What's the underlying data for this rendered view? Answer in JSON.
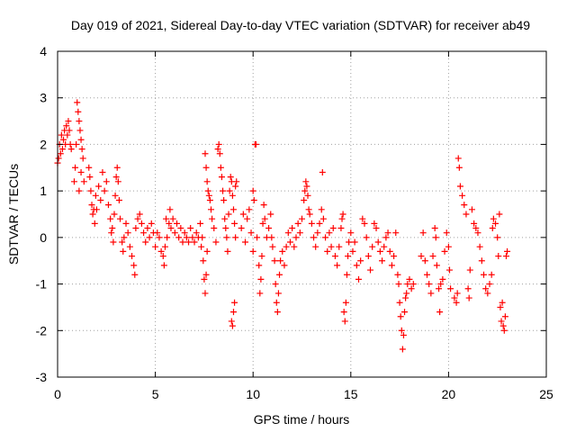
{
  "chart_data": {
    "type": "scatter",
    "title": "Day 019 of 2021, Sidereal Day-to-day VTEC variation (SDTVAR) for receiver ab49",
    "xlabel": "GPS time / hours",
    "ylabel": "SDTVAR / TECUs",
    "xlim": [
      0,
      25
    ],
    "ylim": [
      -3,
      4
    ],
    "xticks": [
      "0",
      "5",
      "10",
      "15",
      "20",
      "25"
    ],
    "yticks": [
      "-3",
      "-2",
      "-1",
      "0",
      "1",
      "2",
      "3",
      "4"
    ],
    "grid": true,
    "marker": "plus",
    "color": "#ff0000",
    "series": [
      {
        "name": "SDTVAR",
        "points": [
          [
            0.0,
            1.6
          ],
          [
            0.05,
            1.7
          ],
          [
            0.1,
            2.0
          ],
          [
            0.15,
            1.8
          ],
          [
            0.2,
            2.2
          ],
          [
            0.25,
            1.9
          ],
          [
            0.3,
            2.1
          ],
          [
            0.35,
            2.3
          ],
          [
            0.4,
            2.0
          ],
          [
            0.45,
            2.4
          ],
          [
            0.5,
            2.2
          ],
          [
            0.55,
            2.5
          ],
          [
            0.6,
            2.3
          ],
          [
            0.65,
            2.0
          ],
          [
            0.7,
            1.9
          ],
          [
            0.85,
            1.2
          ],
          [
            0.9,
            1.5
          ],
          [
            0.95,
            2.0
          ],
          [
            1.0,
            2.9
          ],
          [
            1.05,
            2.7
          ],
          [
            1.1,
            2.5
          ],
          [
            1.15,
            2.3
          ],
          [
            1.2,
            2.1
          ],
          [
            1.25,
            1.9
          ],
          [
            1.3,
            1.7
          ],
          [
            1.35,
            1.2
          ],
          [
            1.1,
            1.0
          ],
          [
            1.2,
            1.4
          ],
          [
            1.6,
            1.5
          ],
          [
            1.65,
            1.3
          ],
          [
            1.7,
            1.0
          ],
          [
            1.75,
            0.7
          ],
          [
            1.8,
            0.5
          ],
          [
            1.85,
            0.6
          ],
          [
            1.9,
            0.3
          ],
          [
            1.95,
            0.9
          ],
          [
            2.0,
            0.6
          ],
          [
            2.1,
            1.1
          ],
          [
            2.2,
            0.8
          ],
          [
            2.3,
            1.4
          ],
          [
            2.4,
            1.0
          ],
          [
            2.5,
            1.2
          ],
          [
            2.6,
            0.7
          ],
          [
            2.7,
            0.4
          ],
          [
            2.75,
            0.1
          ],
          [
            2.8,
            0.2
          ],
          [
            2.85,
            -0.1
          ],
          [
            2.9,
            0.5
          ],
          [
            2.95,
            0.9
          ],
          [
            3.0,
            1.3
          ],
          [
            3.05,
            1.5
          ],
          [
            3.1,
            1.2
          ],
          [
            3.15,
            0.8
          ],
          [
            3.2,
            0.4
          ],
          [
            3.3,
            -0.1
          ],
          [
            3.35,
            -0.3
          ],
          [
            3.4,
            0.0
          ],
          [
            3.5,
            0.3
          ],
          [
            3.6,
            0.1
          ],
          [
            3.7,
            -0.2
          ],
          [
            3.8,
            -0.4
          ],
          [
            3.9,
            -0.6
          ],
          [
            3.95,
            -0.8
          ],
          [
            4.0,
            0.2
          ],
          [
            4.1,
            0.4
          ],
          [
            4.2,
            0.5
          ],
          [
            4.3,
            0.3
          ],
          [
            4.4,
            0.1
          ],
          [
            4.5,
            -0.1
          ],
          [
            4.6,
            0.2
          ],
          [
            4.7,
            0.0
          ],
          [
            4.8,
            0.3
          ],
          [
            4.9,
            0.1
          ],
          [
            5.0,
            -0.2
          ],
          [
            5.1,
            0.1
          ],
          [
            5.2,
            0.0
          ],
          [
            5.3,
            -0.3
          ],
          [
            5.4,
            -0.4
          ],
          [
            5.45,
            -0.6
          ],
          [
            5.5,
            -0.2
          ],
          [
            5.55,
            0.4
          ],
          [
            5.6,
            0.0
          ],
          [
            5.7,
            0.3
          ],
          [
            5.75,
            0.6
          ],
          [
            5.8,
            0.2
          ],
          [
            5.9,
            0.4
          ],
          [
            6.0,
            0.1
          ],
          [
            6.1,
            0.3
          ],
          [
            6.2,
            0.0
          ],
          [
            6.3,
            0.2
          ],
          [
            6.4,
            -0.1
          ],
          [
            6.5,
            0.1
          ],
          [
            6.6,
            0.0
          ],
          [
            6.7,
            -0.1
          ],
          [
            6.8,
            0.2
          ],
          [
            6.9,
            0.0
          ],
          [
            7.0,
            -0.1
          ],
          [
            7.1,
            0.1
          ],
          [
            7.2,
            0.0
          ],
          [
            7.3,
            0.3
          ],
          [
            7.35,
            -0.2
          ],
          [
            7.4,
            0.0
          ],
          [
            7.45,
            -0.5
          ],
          [
            7.5,
            -0.9
          ],
          [
            7.55,
            -1.2
          ],
          [
            7.6,
            -0.8
          ],
          [
            7.65,
            -0.3
          ],
          [
            7.55,
            1.8
          ],
          [
            7.6,
            1.5
          ],
          [
            7.65,
            1.2
          ],
          [
            7.7,
            1.0
          ],
          [
            7.75,
            0.9
          ],
          [
            7.8,
            0.8
          ],
          [
            7.85,
            0.6
          ],
          [
            7.9,
            0.4
          ],
          [
            8.0,
            0.2
          ],
          [
            8.1,
            -0.1
          ],
          [
            8.2,
            1.9
          ],
          [
            8.25,
            2.0
          ],
          [
            8.3,
            1.8
          ],
          [
            8.35,
            1.5
          ],
          [
            8.4,
            1.3
          ],
          [
            8.45,
            1.0
          ],
          [
            8.5,
            0.8
          ],
          [
            8.55,
            0.4
          ],
          [
            8.6,
            0.2
          ],
          [
            8.65,
            0.0
          ],
          [
            8.7,
            -0.3
          ],
          [
            8.75,
            0.5
          ],
          [
            8.8,
            1.0
          ],
          [
            8.85,
            1.3
          ],
          [
            8.9,
            1.2
          ],
          [
            8.95,
            0.9
          ],
          [
            9.0,
            0.6
          ],
          [
            9.05,
            0.3
          ],
          [
            9.1,
            0.0
          ],
          [
            8.9,
            -1.8
          ],
          [
            8.95,
            -1.9
          ],
          [
            9.0,
            -1.6
          ],
          [
            9.05,
            -1.4
          ],
          [
            9.1,
            1.1
          ],
          [
            9.15,
            1.2
          ],
          [
            9.4,
            0.2
          ],
          [
            9.5,
            0.5
          ],
          [
            9.6,
            -0.1
          ],
          [
            9.7,
            0.4
          ],
          [
            9.8,
            0.6
          ],
          [
            9.9,
            0.1
          ],
          [
            10.0,
            1.0
          ],
          [
            10.05,
            0.8
          ],
          [
            10.1,
            2.0
          ],
          [
            10.15,
            2.0
          ],
          [
            10.0,
            -0.3
          ],
          [
            10.2,
            0.0
          ],
          [
            10.3,
            -0.6
          ],
          [
            10.35,
            -1.2
          ],
          [
            10.4,
            -0.9
          ],
          [
            10.45,
            -0.4
          ],
          [
            10.5,
            0.3
          ],
          [
            10.55,
            0.7
          ],
          [
            10.6,
            0.4
          ],
          [
            10.7,
            0.0
          ],
          [
            10.8,
            0.2
          ],
          [
            10.9,
            0.5
          ],
          [
            10.95,
            0.0
          ],
          [
            11.0,
            -0.2
          ],
          [
            11.1,
            -0.5
          ],
          [
            11.15,
            -1.0
          ],
          [
            11.2,
            -1.4
          ],
          [
            11.25,
            -1.6
          ],
          [
            11.3,
            -1.2
          ],
          [
            11.35,
            -0.8
          ],
          [
            11.4,
            -0.5
          ],
          [
            11.5,
            -0.3
          ],
          [
            11.6,
            -0.6
          ],
          [
            11.7,
            -0.2
          ],
          [
            11.8,
            0.1
          ],
          [
            11.9,
            -0.1
          ],
          [
            12.0,
            0.2
          ],
          [
            12.1,
            -0.2
          ],
          [
            12.2,
            0.0
          ],
          [
            12.3,
            0.3
          ],
          [
            12.4,
            0.1
          ],
          [
            12.5,
            0.4
          ],
          [
            12.6,
            0.8
          ],
          [
            12.65,
            1.0
          ],
          [
            12.7,
            1.2
          ],
          [
            12.75,
            1.1
          ],
          [
            12.8,
            0.9
          ],
          [
            12.85,
            0.6
          ],
          [
            12.9,
            0.5
          ],
          [
            13.0,
            0.3
          ],
          [
            13.1,
            0.0
          ],
          [
            13.2,
            -0.2
          ],
          [
            13.3,
            0.1
          ],
          [
            13.4,
            0.3
          ],
          [
            13.5,
            0.6
          ],
          [
            13.55,
            1.4
          ],
          [
            13.6,
            0.4
          ],
          [
            13.7,
            0.0
          ],
          [
            13.8,
            -0.3
          ],
          [
            13.9,
            0.1
          ],
          [
            14.0,
            -0.2
          ],
          [
            14.1,
            0.2
          ],
          [
            14.2,
            -0.4
          ],
          [
            14.3,
            -0.6
          ],
          [
            14.4,
            -0.2
          ],
          [
            14.5,
            0.2
          ],
          [
            14.55,
            0.4
          ],
          [
            14.6,
            0.5
          ],
          [
            14.65,
            -1.6
          ],
          [
            14.7,
            -1.8
          ],
          [
            14.75,
            -1.4
          ],
          [
            14.8,
            -0.8
          ],
          [
            14.85,
            -0.4
          ],
          [
            14.9,
            -0.1
          ],
          [
            15.0,
            0.1
          ],
          [
            15.1,
            -0.3
          ],
          [
            15.2,
            -0.1
          ],
          [
            15.3,
            -0.6
          ],
          [
            15.4,
            -0.9
          ],
          [
            15.5,
            -0.5
          ],
          [
            15.6,
            0.4
          ],
          [
            15.7,
            0.3
          ],
          [
            15.8,
            0.0
          ],
          [
            15.9,
            -0.4
          ],
          [
            16.0,
            -0.7
          ],
          [
            16.1,
            -0.2
          ],
          [
            16.2,
            0.3
          ],
          [
            16.3,
            0.2
          ],
          [
            16.4,
            -0.1
          ],
          [
            16.5,
            -0.3
          ],
          [
            16.6,
            -0.5
          ],
          [
            16.7,
            -0.2
          ],
          [
            16.8,
            0.0
          ],
          [
            16.9,
            0.1
          ],
          [
            17.0,
            -0.3
          ],
          [
            17.1,
            -0.6
          ],
          [
            17.2,
            -0.4
          ],
          [
            17.3,
            0.1
          ],
          [
            17.4,
            -0.8
          ],
          [
            17.45,
            -1.0
          ],
          [
            17.5,
            -1.4
          ],
          [
            17.55,
            -1.7
          ],
          [
            17.6,
            -2.0
          ],
          [
            17.65,
            -2.4
          ],
          [
            17.7,
            -2.1
          ],
          [
            17.75,
            -1.6
          ],
          [
            17.8,
            -1.3
          ],
          [
            17.85,
            -1.2
          ],
          [
            17.9,
            -1.0
          ],
          [
            18.0,
            -0.9
          ],
          [
            18.1,
            -1.1
          ],
          [
            18.2,
            -1.0
          ],
          [
            18.6,
            -0.4
          ],
          [
            18.7,
            0.1
          ],
          [
            18.8,
            -0.5
          ],
          [
            18.9,
            -0.8
          ],
          [
            19.0,
            -1.0
          ],
          [
            19.1,
            -1.2
          ],
          [
            19.2,
            -0.4
          ],
          [
            19.3,
            0.2
          ],
          [
            19.35,
            0.0
          ],
          [
            19.4,
            -0.6
          ],
          [
            19.5,
            -1.1
          ],
          [
            19.55,
            -1.6
          ],
          [
            19.6,
            -1.0
          ],
          [
            19.7,
            -0.9
          ],
          [
            19.8,
            -0.3
          ],
          [
            19.9,
            0.1
          ],
          [
            20.0,
            -0.2
          ],
          [
            20.05,
            -0.7
          ],
          [
            20.1,
            -1.1
          ],
          [
            20.3,
            -1.3
          ],
          [
            20.4,
            -1.4
          ],
          [
            20.45,
            -1.2
          ],
          [
            20.5,
            1.7
          ],
          [
            20.55,
            1.5
          ],
          [
            20.6,
            1.1
          ],
          [
            20.7,
            0.9
          ],
          [
            20.8,
            0.7
          ],
          [
            20.9,
            0.5
          ],
          [
            21.0,
            -1.1
          ],
          [
            21.05,
            -1.3
          ],
          [
            21.1,
            -0.7
          ],
          [
            21.2,
            0.6
          ],
          [
            21.3,
            0.3
          ],
          [
            21.4,
            0.2
          ],
          [
            21.5,
            0.1
          ],
          [
            21.6,
            -0.2
          ],
          [
            21.7,
            -0.5
          ],
          [
            21.8,
            -0.8
          ],
          [
            21.9,
            -1.1
          ],
          [
            22.0,
            -1.2
          ],
          [
            22.1,
            -1.0
          ],
          [
            22.2,
            -0.8
          ],
          [
            22.25,
            0.2
          ],
          [
            22.3,
            0.4
          ],
          [
            22.4,
            0.3
          ],
          [
            22.5,
            0.0
          ],
          [
            22.55,
            -0.4
          ],
          [
            22.6,
            0.5
          ],
          [
            22.65,
            -1.5
          ],
          [
            22.7,
            -1.8
          ],
          [
            22.75,
            -1.4
          ],
          [
            22.8,
            -1.9
          ],
          [
            22.85,
            -2.0
          ],
          [
            22.9,
            -1.7
          ],
          [
            22.95,
            -0.4
          ],
          [
            23.0,
            -0.3
          ]
        ]
      }
    ]
  }
}
